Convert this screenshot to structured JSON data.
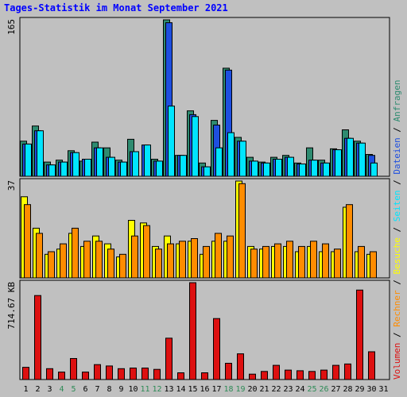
{
  "chart_data": {
    "type": "bar",
    "title": "Tages-Statistik im Monat September 2021",
    "categories": [
      "1",
      "2",
      "3",
      "4",
      "5",
      "6",
      "7",
      "8",
      "9",
      "10",
      "11",
      "12",
      "13",
      "14",
      "15",
      "16",
      "17",
      "18",
      "19",
      "20",
      "21",
      "22",
      "23",
      "24",
      "25",
      "26",
      "27",
      "28",
      "29",
      "30",
      "31"
    ],
    "weekend_days": [
      "4",
      "5",
      "11",
      "12",
      "18",
      "19",
      "25",
      "26"
    ],
    "panels": [
      {
        "name": "top",
        "scale_label": "165",
        "ylim": [
          0,
          165
        ],
        "series": [
          {
            "name": "Anfragen",
            "color": "#2e8b70",
            "values": [
              37,
              53,
              15,
              17,
              27,
              16,
              36,
              30,
              17,
              39,
              0,
              18,
              165,
              22,
              69,
              14,
              59,
              114,
              41,
              20,
              15,
              20,
              22,
              14,
              30,
              17,
              29,
              49,
              37,
              23,
              0
            ]
          },
          {
            "name": "Dateien",
            "color": "#1e4fe0",
            "values": [
              34,
              48,
              12,
              15,
              25,
              18,
              30,
              20,
              15,
              26,
              33,
              16,
              162,
              22,
              65,
              10,
              54,
              112,
              37,
              16,
              14,
              18,
              20,
              13,
              17,
              14,
              28,
              40,
              35,
              22,
              0
            ]
          },
          {
            "name": "Seiten",
            "color": "#00e5ff",
            "values": [
              34,
              48,
              12,
              15,
              25,
              18,
              30,
              20,
              15,
              26,
              33,
              16,
              74,
              22,
              63,
              10,
              30,
              46,
              37,
              16,
              14,
              18,
              20,
              13,
              17,
              14,
              28,
              40,
              35,
              14,
              0
            ]
          }
        ]
      },
      {
        "name": "middle",
        "scale_label": "37",
        "ylim": [
          0,
          37
        ],
        "series": [
          {
            "name": "Besuche",
            "color": "#ffff00",
            "values": [
              31,
              19,
              9,
              11,
              17,
              12,
              16,
              13,
              8,
              22,
              21,
              12,
              16,
              13,
              14,
              9,
              14,
              14,
              37,
              12,
              11,
              12,
              12,
              10,
              12,
              10,
              10,
              27,
              10,
              9,
              0
            ]
          },
          {
            "name": "Rechner",
            "color": "#ff8c00",
            "values": [
              28,
              17,
              10,
              13,
              19,
              14,
              14,
              11,
              9,
              16,
              20,
              11,
              13,
              14,
              15,
              12,
              17,
              16,
              36,
              11,
              12,
              13,
              14,
              12,
              14,
              13,
              11,
              28,
              12,
              10,
              0
            ]
          }
        ]
      },
      {
        "name": "bottom",
        "scale_label": "714.67 KB",
        "ylim": [
          0,
          714.67
        ],
        "series": [
          {
            "name": "Volumen",
            "color": "#dd1010",
            "values": [
              90,
              620,
              80,
              55,
              155,
              55,
              110,
              100,
              80,
              85,
              85,
              75,
              305,
              50,
              714.67,
              50,
              450,
              120,
              190,
              40,
              60,
              105,
              70,
              65,
              60,
              70,
              105,
              115,
              660,
              205,
              0
            ]
          }
        ]
      }
    ],
    "legend_order": [
      "Volumen",
      "Rechner",
      "Besuche",
      "Seiten",
      "Dateien",
      "Anfragen"
    ],
    "separator": " / ",
    "grid": false
  }
}
